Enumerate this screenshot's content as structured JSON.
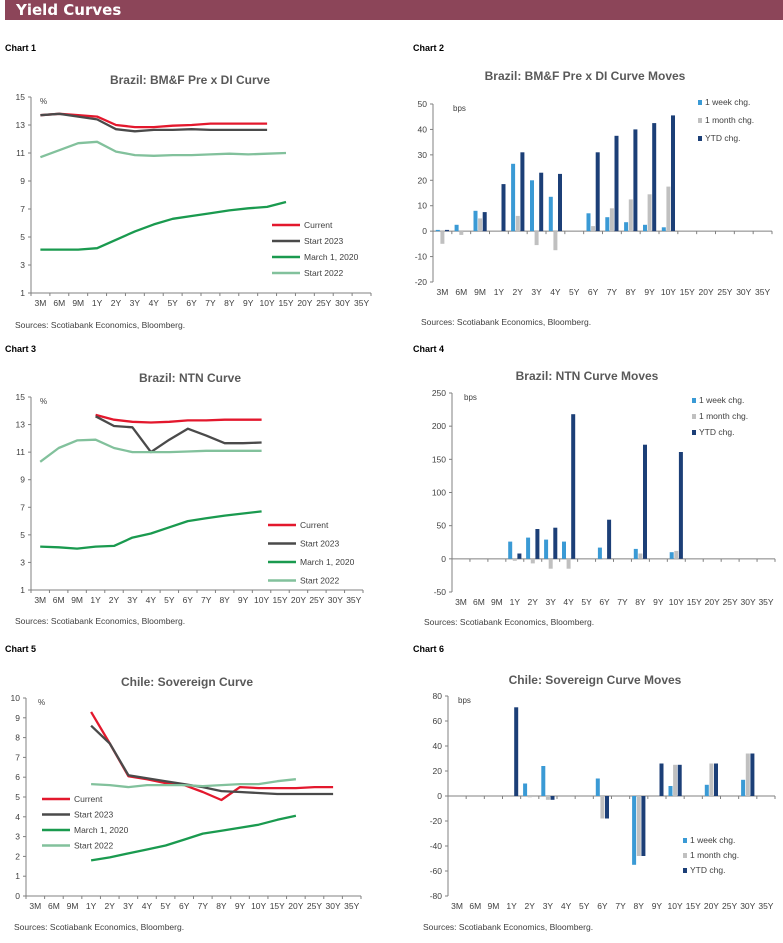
{
  "header": {
    "title": "Yield Curves"
  },
  "sources": "Sources: Scotiabank Economics, Bloomberg.",
  "colors": {
    "header": "#8c4559",
    "current": "#e3182d",
    "start2023": "#4a4a4a",
    "march2020": "#1a9a4f",
    "start2022": "#82c19c",
    "week": "#3a9ad5",
    "month": "#c0c0c0",
    "ytd": "#1c3f77"
  },
  "chart_data": [
    {
      "label": "Chart 1",
      "type": "line",
      "title": "Brazil: BM&F  Pre x DI Curve",
      "unit": "%",
      "categories": [
        "3M",
        "6M",
        "9M",
        "1Y",
        "2Y",
        "3Y",
        "4Y",
        "5Y",
        "6Y",
        "7Y",
        "8Y",
        "9Y",
        "10Y",
        "15Y",
        "20Y",
        "25Y",
        "30Y",
        "35Y"
      ],
      "ylim": [
        1,
        15
      ],
      "yticks": [
        1,
        3,
        5,
        7,
        9,
        11,
        13,
        15
      ],
      "legend": "right",
      "series": [
        {
          "name": "Current",
          "color": "#e3182d",
          "values": [
            13.7,
            13.8,
            13.7,
            13.6,
            13.0,
            12.85,
            12.85,
            12.95,
            13.0,
            13.1,
            13.1,
            13.1,
            13.1,
            null,
            null,
            null,
            null,
            null
          ]
        },
        {
          "name": "Start 2023",
          "color": "#4a4a4a",
          "values": [
            13.7,
            13.8,
            13.6,
            13.4,
            12.7,
            12.55,
            12.65,
            12.65,
            12.7,
            12.65,
            12.65,
            12.65,
            12.65,
            null,
            null,
            null,
            null,
            null
          ]
        },
        {
          "name": "March 1, 2020",
          "color": "#1a9a4f",
          "values": [
            4.1,
            4.1,
            4.1,
            4.2,
            4.8,
            5.4,
            5.9,
            6.3,
            6.5,
            6.7,
            6.9,
            7.05,
            7.15,
            7.5,
            null,
            null,
            null,
            null
          ]
        },
        {
          "name": "Start 2022",
          "color": "#82c19c",
          "values": [
            10.7,
            11.2,
            11.7,
            11.8,
            11.1,
            10.85,
            10.8,
            10.85,
            10.85,
            10.9,
            10.95,
            10.9,
            10.95,
            11.0,
            null,
            null,
            null,
            null
          ]
        }
      ]
    },
    {
      "label": "Chart 2",
      "type": "bar",
      "title": "Brazil: BM&F  Pre x DI Curve Moves",
      "unit": "bps",
      "categories": [
        "3M",
        "6M",
        "9M",
        "1Y",
        "2Y",
        "3Y",
        "4Y",
        "5Y",
        "6Y",
        "7Y",
        "8Y",
        "9Y",
        "10Y",
        "15Y",
        "20Y",
        "25Y",
        "30Y",
        "35Y"
      ],
      "ylim": [
        -20,
        50
      ],
      "yticks": [
        -20,
        -10,
        0,
        10,
        20,
        30,
        40,
        50
      ],
      "legend": "top-right",
      "series": [
        {
          "name": "1 week chg.",
          "color": "#3a9ad5",
          "values": [
            0.5,
            2.5,
            8,
            null,
            26.5,
            20,
            13.5,
            null,
            7,
            5.5,
            3.5,
            2.5,
            1.5,
            null,
            null,
            null,
            null,
            null
          ]
        },
        {
          "name": "1 month chg.",
          "color": "#c0c0c0",
          "values": [
            -5,
            -1.5,
            5,
            null,
            6,
            -5.5,
            -7.5,
            null,
            2,
            9,
            12.5,
            14.5,
            17.5,
            null,
            null,
            null,
            null,
            null
          ]
        },
        {
          "name": "YTD chg.",
          "color": "#1c3f77",
          "values": [
            0.5,
            null,
            7.5,
            18.5,
            31,
            23,
            22.5,
            null,
            31,
            37.5,
            40,
            42.5,
            45.5,
            null,
            null,
            null,
            null,
            null
          ]
        }
      ]
    },
    {
      "label": "Chart 3",
      "type": "line",
      "title": "Brazil: NTN Curve",
      "unit": "%",
      "categories": [
        "3M",
        "6M",
        "9M",
        "1Y",
        "2Y",
        "3Y",
        "4Y",
        "5Y",
        "6Y",
        "7Y",
        "8Y",
        "9Y",
        "10Y",
        "15Y",
        "20Y",
        "25Y",
        "30Y",
        "35Y"
      ],
      "ylim": [
        1,
        15
      ],
      "yticks": [
        1,
        3,
        5,
        7,
        9,
        11,
        13,
        15
      ],
      "legend": "right",
      "series": [
        {
          "name": "Current",
          "color": "#e3182d",
          "values": [
            null,
            null,
            null,
            13.7,
            13.35,
            13.2,
            13.15,
            13.2,
            13.3,
            13.3,
            13.35,
            13.35,
            13.35,
            null,
            null,
            null,
            null,
            null
          ]
        },
        {
          "name": "Start 2023",
          "color": "#4a4a4a",
          "values": [
            null,
            null,
            null,
            13.6,
            12.9,
            12.8,
            11.0,
            11.9,
            12.7,
            12.2,
            11.65,
            11.65,
            11.7,
            null,
            null,
            null,
            null,
            null
          ]
        },
        {
          "name": "March 1, 2020",
          "color": "#1a9a4f",
          "values": [
            4.15,
            4.1,
            4.0,
            4.15,
            4.2,
            4.8,
            5.1,
            5.55,
            6.0,
            6.2,
            6.4,
            6.55,
            6.7,
            null,
            null,
            null,
            null,
            null
          ]
        },
        {
          "name": "Start 2022",
          "color": "#82c19c",
          "values": [
            10.3,
            11.3,
            11.85,
            11.9,
            11.3,
            11.0,
            11.0,
            11.0,
            11.05,
            11.1,
            11.1,
            11.1,
            11.1,
            null,
            null,
            null,
            null,
            null
          ]
        }
      ]
    },
    {
      "label": "Chart 4",
      "type": "bar",
      "title": "Brazil: NTN Curve Moves",
      "unit": "bps",
      "categories": [
        "3M",
        "6M",
        "9M",
        "1Y",
        "2Y",
        "3Y",
        "4Y",
        "5Y",
        "6Y",
        "7Y",
        "8Y",
        "9Y",
        "10Y",
        "15Y",
        "20Y",
        "25Y",
        "30Y",
        "35Y"
      ],
      "ylim": [
        -50,
        250
      ],
      "yticks": [
        -50,
        0,
        50,
        100,
        150,
        200,
        250
      ],
      "legend": "top-right",
      "series": [
        {
          "name": "1 week chg.",
          "color": "#3a9ad5",
          "values": [
            null,
            null,
            null,
            26,
            32,
            29,
            26,
            null,
            17,
            null,
            15,
            null,
            10,
            null,
            null,
            null,
            null,
            null
          ]
        },
        {
          "name": "1 month chg.",
          "color": "#c0c0c0",
          "values": [
            null,
            null,
            null,
            -3,
            -7,
            -15,
            -15,
            null,
            -1,
            null,
            8,
            null,
            12,
            null,
            null,
            null,
            null,
            null
          ]
        },
        {
          "name": "YTD chg.",
          "color": "#1c3f77",
          "values": [
            null,
            null,
            null,
            8,
            45,
            47,
            218,
            null,
            59,
            null,
            172,
            null,
            161,
            null,
            null,
            null,
            null,
            null
          ]
        }
      ]
    },
    {
      "label": "Chart 5",
      "type": "line",
      "title": "Chile:  Sovereign Curve",
      "unit": "%",
      "categories": [
        "3M",
        "6M",
        "9M",
        "1Y",
        "2Y",
        "3Y",
        "4Y",
        "5Y",
        "6Y",
        "7Y",
        "8Y",
        "9Y",
        "10Y",
        "15Y",
        "20Y",
        "25Y",
        "30Y",
        "35Y"
      ],
      "ylim": [
        0,
        10
      ],
      "yticks": [
        0,
        1,
        2,
        3,
        4,
        5,
        6,
        7,
        8,
        9,
        10
      ],
      "legend": "left",
      "series": [
        {
          "name": "Current",
          "color": "#e3182d",
          "values": [
            null,
            null,
            null,
            9.3,
            7.7,
            6.05,
            5.9,
            5.7,
            5.6,
            5.25,
            4.85,
            5.5,
            5.45,
            5.45,
            5.45,
            5.5,
            5.5,
            null
          ]
        },
        {
          "name": "Start 2023",
          "color": "#4a4a4a",
          "values": [
            null,
            null,
            null,
            8.6,
            7.7,
            6.1,
            5.95,
            5.8,
            5.65,
            5.5,
            5.3,
            5.25,
            5.2,
            5.15,
            5.15,
            5.15,
            5.15,
            null
          ]
        },
        {
          "name": "March 1, 2020",
          "color": "#1a9a4f",
          "values": [
            null,
            null,
            null,
            1.8,
            1.95,
            2.15,
            2.35,
            2.55,
            2.85,
            3.15,
            3.3,
            3.45,
            3.6,
            3.85,
            4.05,
            null,
            null,
            null
          ]
        },
        {
          "name": "Start 2022",
          "color": "#82c19c",
          "values": [
            null,
            null,
            null,
            5.65,
            5.6,
            5.5,
            5.6,
            5.6,
            5.6,
            5.55,
            5.6,
            5.65,
            5.65,
            5.8,
            5.9,
            null,
            null,
            null
          ]
        }
      ]
    },
    {
      "label": "Chart 6",
      "type": "bar",
      "title": "Chile:  Sovereign Curve Moves",
      "unit": "bps",
      "categories": [
        "3M",
        "6M",
        "9M",
        "1Y",
        "2Y",
        "3Y",
        "4Y",
        "5Y",
        "6Y",
        "7Y",
        "8Y",
        "9Y",
        "10Y",
        "15Y",
        "20Y",
        "25Y",
        "30Y",
        "35Y"
      ],
      "ylim": [
        -80,
        80
      ],
      "yticks": [
        -80,
        -60,
        -40,
        -20,
        0,
        20,
        40,
        60,
        80
      ],
      "legend": "bottom-right",
      "series": [
        {
          "name": "1 week chg.",
          "color": "#3a9ad5",
          "values": [
            null,
            null,
            null,
            null,
            10,
            24,
            null,
            null,
            14,
            null,
            -55,
            null,
            8,
            null,
            9,
            null,
            13,
            null
          ]
        },
        {
          "name": "1 month chg.",
          "color": "#c0c0c0",
          "values": [
            null,
            null,
            null,
            null,
            -1,
            -3,
            null,
            null,
            -18,
            null,
            -48,
            null,
            25,
            null,
            26,
            null,
            34,
            null
          ]
        },
        {
          "name": "YTD chg.",
          "color": "#1c3f77",
          "values": [
            null,
            null,
            null,
            71,
            null,
            -3,
            null,
            null,
            -18,
            null,
            -48,
            26,
            25,
            null,
            26,
            null,
            34,
            null
          ]
        }
      ]
    }
  ]
}
